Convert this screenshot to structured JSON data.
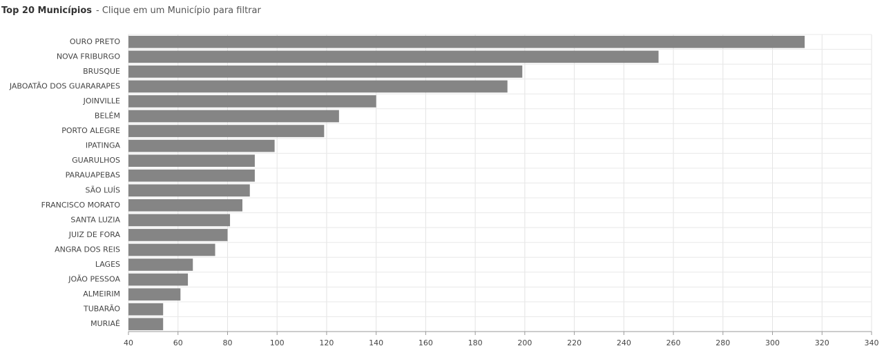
{
  "chart_data": {
    "type": "barh",
    "title": "Top 20 Municípios",
    "subtitle": "- Clique em um Município para filtrar",
    "categories": [
      "OURO PRETO",
      "NOVA FRIBURGO",
      "BRUSQUE",
      "JABOATÃO DOS GUARARAPES",
      "JOINVILLE",
      "BELÉM",
      "PORTO ALEGRE",
      "IPATINGA",
      "GUARULHOS",
      "PARAUAPEBAS",
      "SÃO LUÍS",
      "FRANCISCO MORATO",
      "SANTA LUZIA",
      "JUIZ DE FORA",
      "ANGRA DOS REIS",
      "LAGES",
      "JOÃO PESSOA",
      "ALMEIRIM",
      "TUBARÃO",
      "MURIAÉ"
    ],
    "values": [
      313,
      254,
      199,
      193,
      140,
      125,
      119,
      99,
      91,
      91,
      89,
      86,
      81,
      80,
      75,
      66,
      64,
      61,
      54,
      54
    ],
    "color": "#858585",
    "xlim": [
      40,
      340
    ],
    "xticks": [
      40,
      60,
      80,
      100,
      120,
      140,
      160,
      180,
      200,
      220,
      240,
      260,
      280,
      300,
      320,
      340
    ],
    "grid": true
  }
}
